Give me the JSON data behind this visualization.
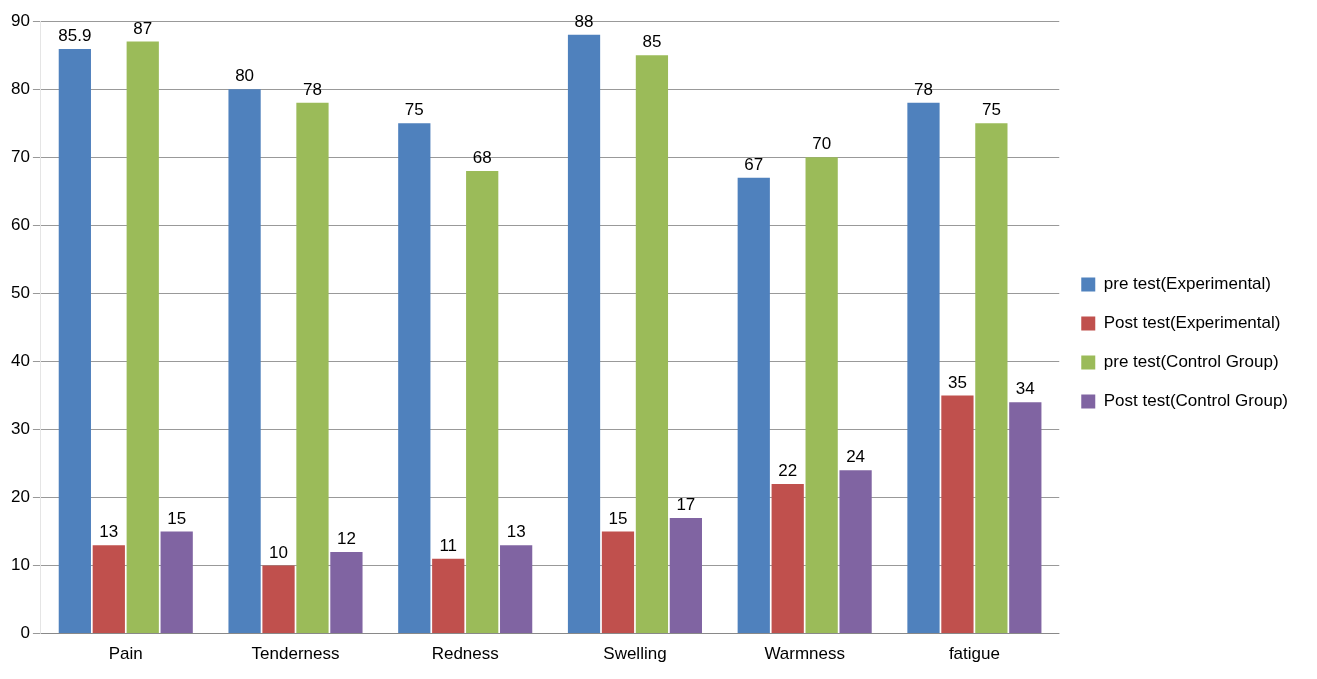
{
  "chart_data": {
    "type": "bar",
    "categories": [
      "Pain",
      "Tenderness",
      "Redness",
      "Swelling",
      "Warmness",
      "fatigue"
    ],
    "series": [
      {
        "name": "pre test(Experimental)",
        "color": "#4f81bd",
        "values": [
          85.9,
          80,
          75,
          88,
          67,
          78
        ]
      },
      {
        "name": "Post test(Experimental)",
        "color": "#c0504d",
        "values": [
          13,
          10,
          11,
          15,
          22,
          35
        ]
      },
      {
        "name": "pre test(Control Group)",
        "color": "#9bbb59",
        "values": [
          87,
          78,
          68,
          85,
          70,
          75
        ]
      },
      {
        "name": "Post test(Control Group)",
        "color": "#8064a2",
        "values": [
          15,
          12,
          13,
          17,
          24,
          34
        ]
      }
    ],
    "ylim": [
      0,
      90
    ],
    "yticks": [
      0,
      10,
      20,
      30,
      40,
      50,
      60,
      70,
      80,
      90
    ],
    "grid": "y",
    "legend": "right",
    "data_labels": true
  }
}
